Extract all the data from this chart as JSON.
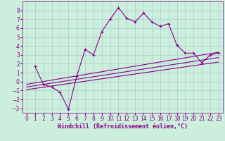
{
  "xlabel": "Windchill (Refroidissement éolien,°C)",
  "bg_color": "#cceedd",
  "grid_color": "#aacccc",
  "line_color": "#880088",
  "xlim": [
    -0.5,
    23.5
  ],
  "ylim": [
    -3.5,
    9.0
  ],
  "xticks": [
    0,
    1,
    2,
    3,
    4,
    5,
    6,
    7,
    8,
    9,
    10,
    11,
    12,
    13,
    14,
    15,
    16,
    17,
    18,
    19,
    20,
    21,
    22,
    23
  ],
  "yticks": [
    -3,
    -2,
    -1,
    0,
    1,
    2,
    3,
    4,
    5,
    6,
    7,
    8
  ],
  "line1_x": [
    1,
    2,
    3,
    4,
    5,
    6,
    7,
    8,
    9,
    10,
    11,
    12,
    13,
    14,
    15,
    16,
    17,
    18,
    19,
    20,
    21,
    22,
    23
  ],
  "line1_y": [
    1.7,
    -0.3,
    -0.6,
    -1.2,
    -3.1,
    0.6,
    3.6,
    3.0,
    5.6,
    7.0,
    8.3,
    7.1,
    6.7,
    7.7,
    6.7,
    6.2,
    6.5,
    4.1,
    3.2,
    3.2,
    2.1,
    3.0,
    3.2
  ],
  "line2_x": [
    0,
    23
  ],
  "line2_y": [
    -0.3,
    3.3
  ],
  "line3_x": [
    0,
    23
  ],
  "line3_y": [
    -0.6,
    2.7
  ],
  "line4_x": [
    0,
    23
  ],
  "line4_y": [
    -0.9,
    2.2
  ],
  "xlabel_fontsize": 6,
  "tick_fontsize": 5.5
}
